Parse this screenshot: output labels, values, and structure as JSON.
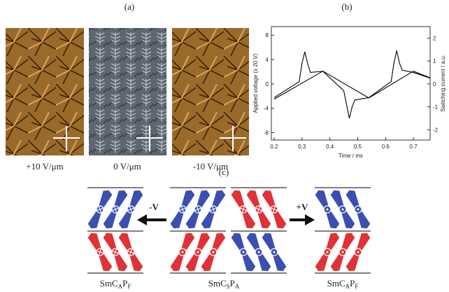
{
  "panel_a": {
    "label": "(a)",
    "captions": [
      "+10 V/μm",
      "0 V/μm",
      "-10 V/μm"
    ]
  },
  "chart_data": {
    "type": "line",
    "title": "(b)",
    "xlabel": "Time / ms",
    "ylabel": "Applied voltage (x 20 V)",
    "y2label": "Switching current / a.u.",
    "xlim": [
      0.19,
      0.76
    ],
    "xticks": [
      0.2,
      0.3,
      0.4,
      0.5,
      0.6,
      0.7
    ],
    "ylim": [
      -9.2,
      9.4
    ],
    "yticks": [
      -8,
      -4,
      0,
      4,
      8
    ],
    "y2lim": [
      -2.45,
      2.5
    ],
    "y2ticks": [
      -2,
      -1,
      0,
      1,
      2
    ],
    "series": [
      {
        "color": "#000000",
        "x": [
          0.2,
          0.375,
          0.54,
          0.7,
          0.76
        ],
        "values": [
          -2.5,
          2.1,
          -2.3,
          2.1,
          1.0
        ]
      },
      {
        "color": "#000000",
        "axis": "y2",
        "x": [
          0.2,
          0.29,
          0.3,
          0.31,
          0.32,
          0.33,
          0.375,
          0.45,
          0.46,
          0.47,
          0.48,
          0.49,
          0.54,
          0.62,
          0.63,
          0.64,
          0.65,
          0.66,
          0.7,
          0.76
        ],
        "values": [
          -0.6,
          0.1,
          0.9,
          1.4,
          0.9,
          0.5,
          0.55,
          -0.3,
          -0.9,
          -1.5,
          -1.0,
          -0.7,
          -0.6,
          0.1,
          0.9,
          1.45,
          0.9,
          0.6,
          0.5,
          0.25
        ]
      }
    ]
  },
  "panel_c": {
    "label": "(c)",
    "arrow_left": "-V",
    "arrow_right": "+V",
    "phases": [
      [
        "SmC",
        "A",
        "P",
        "F"
      ],
      [
        "SmC",
        "S",
        "P",
        "A"
      ],
      [
        "SmC",
        "A",
        "P",
        "F"
      ]
    ]
  }
}
